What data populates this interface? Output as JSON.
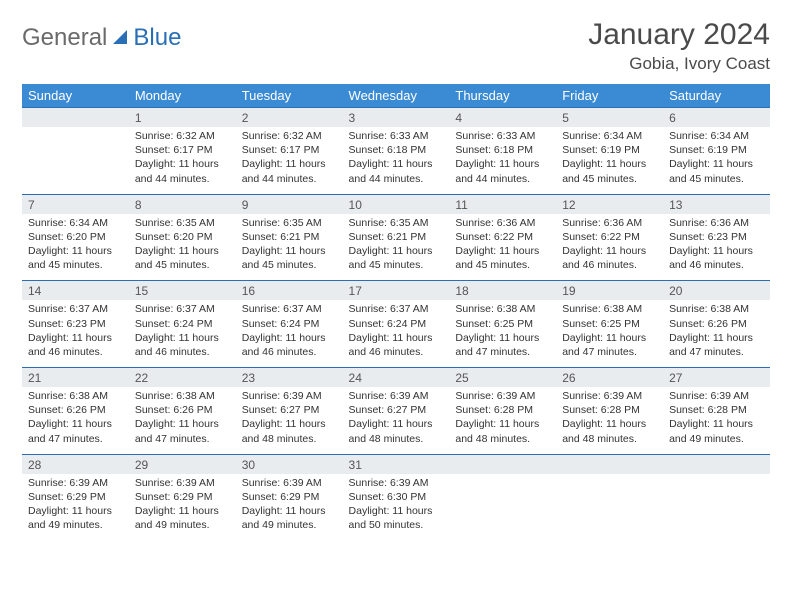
{
  "logo": {
    "text1": "General",
    "text2": "Blue"
  },
  "title": "January 2024",
  "location": "Gobia, Ivory Coast",
  "colors": {
    "header_bg": "#3b8bd4",
    "header_text": "#ffffff",
    "daynum_bg": "#e9ecef",
    "border_top": "#2a6fb5",
    "logo_gray": "#6a6a6a",
    "logo_blue": "#2a6fb5"
  },
  "weekdays": [
    "Sunday",
    "Monday",
    "Tuesday",
    "Wednesday",
    "Thursday",
    "Friday",
    "Saturday"
  ],
  "weeks": [
    {
      "nums": [
        "",
        "1",
        "2",
        "3",
        "4",
        "5",
        "6"
      ],
      "cells": [
        null,
        {
          "sunrise": "Sunrise: 6:32 AM",
          "sunset": "Sunset: 6:17 PM",
          "daylight": "Daylight: 11 hours and 44 minutes."
        },
        {
          "sunrise": "Sunrise: 6:32 AM",
          "sunset": "Sunset: 6:17 PM",
          "daylight": "Daylight: 11 hours and 44 minutes."
        },
        {
          "sunrise": "Sunrise: 6:33 AM",
          "sunset": "Sunset: 6:18 PM",
          "daylight": "Daylight: 11 hours and 44 minutes."
        },
        {
          "sunrise": "Sunrise: 6:33 AM",
          "sunset": "Sunset: 6:18 PM",
          "daylight": "Daylight: 11 hours and 44 minutes."
        },
        {
          "sunrise": "Sunrise: 6:34 AM",
          "sunset": "Sunset: 6:19 PM",
          "daylight": "Daylight: 11 hours and 45 minutes."
        },
        {
          "sunrise": "Sunrise: 6:34 AM",
          "sunset": "Sunset: 6:19 PM",
          "daylight": "Daylight: 11 hours and 45 minutes."
        }
      ]
    },
    {
      "nums": [
        "7",
        "8",
        "9",
        "10",
        "11",
        "12",
        "13"
      ],
      "cells": [
        {
          "sunrise": "Sunrise: 6:34 AM",
          "sunset": "Sunset: 6:20 PM",
          "daylight": "Daylight: 11 hours and 45 minutes."
        },
        {
          "sunrise": "Sunrise: 6:35 AM",
          "sunset": "Sunset: 6:20 PM",
          "daylight": "Daylight: 11 hours and 45 minutes."
        },
        {
          "sunrise": "Sunrise: 6:35 AM",
          "sunset": "Sunset: 6:21 PM",
          "daylight": "Daylight: 11 hours and 45 minutes."
        },
        {
          "sunrise": "Sunrise: 6:35 AM",
          "sunset": "Sunset: 6:21 PM",
          "daylight": "Daylight: 11 hours and 45 minutes."
        },
        {
          "sunrise": "Sunrise: 6:36 AM",
          "sunset": "Sunset: 6:22 PM",
          "daylight": "Daylight: 11 hours and 45 minutes."
        },
        {
          "sunrise": "Sunrise: 6:36 AM",
          "sunset": "Sunset: 6:22 PM",
          "daylight": "Daylight: 11 hours and 46 minutes."
        },
        {
          "sunrise": "Sunrise: 6:36 AM",
          "sunset": "Sunset: 6:23 PM",
          "daylight": "Daylight: 11 hours and 46 minutes."
        }
      ]
    },
    {
      "nums": [
        "14",
        "15",
        "16",
        "17",
        "18",
        "19",
        "20"
      ],
      "cells": [
        {
          "sunrise": "Sunrise: 6:37 AM",
          "sunset": "Sunset: 6:23 PM",
          "daylight": "Daylight: 11 hours and 46 minutes."
        },
        {
          "sunrise": "Sunrise: 6:37 AM",
          "sunset": "Sunset: 6:24 PM",
          "daylight": "Daylight: 11 hours and 46 minutes."
        },
        {
          "sunrise": "Sunrise: 6:37 AM",
          "sunset": "Sunset: 6:24 PM",
          "daylight": "Daylight: 11 hours and 46 minutes."
        },
        {
          "sunrise": "Sunrise: 6:37 AM",
          "sunset": "Sunset: 6:24 PM",
          "daylight": "Daylight: 11 hours and 46 minutes."
        },
        {
          "sunrise": "Sunrise: 6:38 AM",
          "sunset": "Sunset: 6:25 PM",
          "daylight": "Daylight: 11 hours and 47 minutes."
        },
        {
          "sunrise": "Sunrise: 6:38 AM",
          "sunset": "Sunset: 6:25 PM",
          "daylight": "Daylight: 11 hours and 47 minutes."
        },
        {
          "sunrise": "Sunrise: 6:38 AM",
          "sunset": "Sunset: 6:26 PM",
          "daylight": "Daylight: 11 hours and 47 minutes."
        }
      ]
    },
    {
      "nums": [
        "21",
        "22",
        "23",
        "24",
        "25",
        "26",
        "27"
      ],
      "cells": [
        {
          "sunrise": "Sunrise: 6:38 AM",
          "sunset": "Sunset: 6:26 PM",
          "daylight": "Daylight: 11 hours and 47 minutes."
        },
        {
          "sunrise": "Sunrise: 6:38 AM",
          "sunset": "Sunset: 6:26 PM",
          "daylight": "Daylight: 11 hours and 47 minutes."
        },
        {
          "sunrise": "Sunrise: 6:39 AM",
          "sunset": "Sunset: 6:27 PM",
          "daylight": "Daylight: 11 hours and 48 minutes."
        },
        {
          "sunrise": "Sunrise: 6:39 AM",
          "sunset": "Sunset: 6:27 PM",
          "daylight": "Daylight: 11 hours and 48 minutes."
        },
        {
          "sunrise": "Sunrise: 6:39 AM",
          "sunset": "Sunset: 6:28 PM",
          "daylight": "Daylight: 11 hours and 48 minutes."
        },
        {
          "sunrise": "Sunrise: 6:39 AM",
          "sunset": "Sunset: 6:28 PM",
          "daylight": "Daylight: 11 hours and 48 minutes."
        },
        {
          "sunrise": "Sunrise: 6:39 AM",
          "sunset": "Sunset: 6:28 PM",
          "daylight": "Daylight: 11 hours and 49 minutes."
        }
      ]
    },
    {
      "nums": [
        "28",
        "29",
        "30",
        "31",
        "",
        "",
        ""
      ],
      "cells": [
        {
          "sunrise": "Sunrise: 6:39 AM",
          "sunset": "Sunset: 6:29 PM",
          "daylight": "Daylight: 11 hours and 49 minutes."
        },
        {
          "sunrise": "Sunrise: 6:39 AM",
          "sunset": "Sunset: 6:29 PM",
          "daylight": "Daylight: 11 hours and 49 minutes."
        },
        {
          "sunrise": "Sunrise: 6:39 AM",
          "sunset": "Sunset: 6:29 PM",
          "daylight": "Daylight: 11 hours and 49 minutes."
        },
        {
          "sunrise": "Sunrise: 6:39 AM",
          "sunset": "Sunset: 6:30 PM",
          "daylight": "Daylight: 11 hours and 50 minutes."
        },
        null,
        null,
        null
      ]
    }
  ]
}
